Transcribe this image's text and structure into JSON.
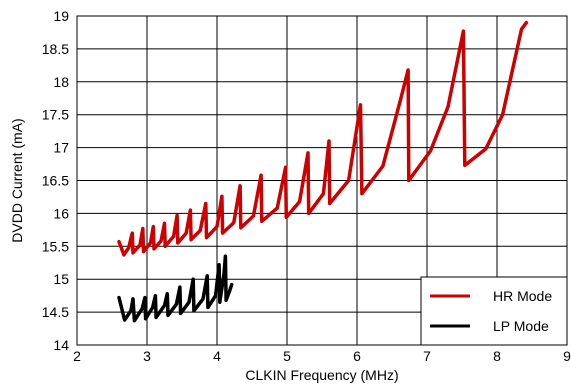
{
  "chart_data": {
    "type": "line",
    "title": "",
    "xlabel": "CLKIN Frequency (MHz)",
    "ylabel": "DVDD Current (mA)",
    "xlim": [
      2,
      9
    ],
    "ylim": [
      14,
      19
    ],
    "x_ticks": [
      "2",
      "3",
      "4",
      "5",
      "6",
      "7",
      "8",
      "9"
    ],
    "y_ticks": [
      "14",
      "14.5",
      "15",
      "15.5",
      "16",
      "16.5",
      "17",
      "17.5",
      "18",
      "18.5",
      "19"
    ],
    "grid": true,
    "legend_position": "bottom-right",
    "series": [
      {
        "name": "HR Mode",
        "color": "#cc0000",
        "points": [
          [
            2.6,
            15.57
          ],
          [
            2.67,
            15.37
          ],
          [
            2.74,
            15.48
          ],
          [
            2.77,
            15.62
          ],
          [
            2.79,
            15.7
          ],
          [
            2.8,
            15.4
          ],
          [
            2.9,
            15.52
          ],
          [
            2.94,
            15.77
          ],
          [
            2.95,
            15.42
          ],
          [
            3.05,
            15.55
          ],
          [
            3.09,
            15.8
          ],
          [
            3.1,
            15.46
          ],
          [
            3.2,
            15.58
          ],
          [
            3.25,
            15.85
          ],
          [
            3.26,
            15.5
          ],
          [
            3.38,
            15.65
          ],
          [
            3.43,
            15.97
          ],
          [
            3.44,
            15.55
          ],
          [
            3.56,
            15.7
          ],
          [
            3.62,
            16.05
          ],
          [
            3.63,
            15.6
          ],
          [
            3.76,
            15.74
          ],
          [
            3.84,
            16.15
          ],
          [
            3.85,
            15.63
          ],
          [
            4.0,
            15.8
          ],
          [
            4.07,
            16.26
          ],
          [
            4.08,
            15.7
          ],
          [
            4.24,
            15.86
          ],
          [
            4.33,
            16.42
          ],
          [
            4.34,
            15.78
          ],
          [
            4.52,
            15.96
          ],
          [
            4.63,
            16.58
          ],
          [
            4.64,
            15.88
          ],
          [
            4.86,
            16.08
          ],
          [
            4.98,
            16.7
          ],
          [
            4.99,
            15.94
          ],
          [
            5.18,
            16.18
          ],
          [
            5.3,
            16.92
          ],
          [
            5.31,
            16.0
          ],
          [
            5.52,
            16.3
          ],
          [
            5.6,
            17.1
          ],
          [
            5.61,
            16.15
          ],
          [
            5.88,
            16.5
          ],
          [
            6.05,
            17.65
          ],
          [
            6.07,
            16.3
          ],
          [
            6.37,
            16.72
          ],
          [
            6.62,
            17.72
          ],
          [
            6.73,
            18.18
          ],
          [
            6.74,
            16.5
          ],
          [
            7.05,
            16.95
          ],
          [
            7.3,
            17.62
          ],
          [
            7.52,
            18.77
          ],
          [
            7.54,
            16.73
          ],
          [
            7.84,
            16.98
          ],
          [
            8.08,
            17.5
          ],
          [
            8.35,
            18.8
          ],
          [
            8.42,
            18.9
          ]
        ]
      },
      {
        "name": "LP Mode",
        "color": "#000000",
        "points": [
          [
            2.6,
            14.72
          ],
          [
            2.68,
            14.38
          ],
          [
            2.77,
            14.52
          ],
          [
            2.8,
            14.7
          ],
          [
            2.82,
            14.37
          ],
          [
            2.93,
            14.55
          ],
          [
            2.97,
            14.72
          ],
          [
            2.98,
            14.4
          ],
          [
            3.08,
            14.57
          ],
          [
            3.12,
            14.75
          ],
          [
            3.13,
            14.42
          ],
          [
            3.25,
            14.6
          ],
          [
            3.29,
            14.78
          ],
          [
            3.3,
            14.45
          ],
          [
            3.42,
            14.62
          ],
          [
            3.47,
            14.88
          ],
          [
            3.48,
            14.48
          ],
          [
            3.6,
            14.65
          ],
          [
            3.66,
            15.0
          ],
          [
            3.67,
            14.52
          ],
          [
            3.8,
            14.7
          ],
          [
            3.86,
            15.05
          ],
          [
            3.87,
            14.57
          ],
          [
            3.98,
            14.75
          ],
          [
            4.03,
            15.22
          ],
          [
            4.04,
            14.65
          ],
          [
            4.1,
            15.08
          ],
          [
            4.12,
            15.35
          ],
          [
            4.13,
            14.68
          ],
          [
            4.18,
            14.82
          ],
          [
            4.21,
            14.92
          ]
        ]
      }
    ]
  }
}
